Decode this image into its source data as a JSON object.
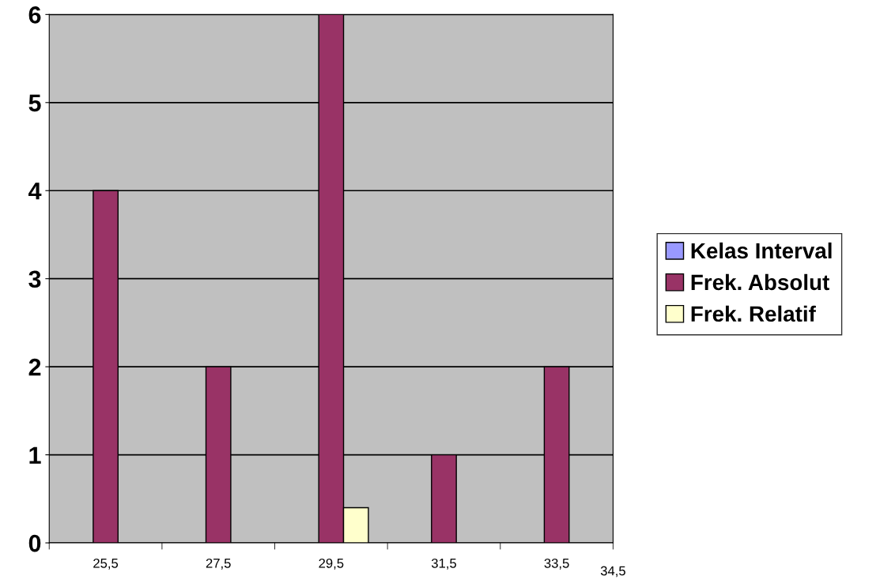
{
  "chart_data": {
    "type": "bar",
    "categories": [
      "25,5",
      "27,5",
      "29,5",
      "31,5",
      "33,5"
    ],
    "series": [
      {
        "name": "Kelas Interval",
        "color": "#9999ff",
        "values": [
          null,
          null,
          null,
          null,
          null
        ]
      },
      {
        "name": "Frek. Absolut",
        "color": "#993366",
        "values": [
          4,
          2,
          6,
          1,
          2
        ]
      },
      {
        "name": "Frek. Relatif",
        "color": "#ffffcc",
        "values": [
          null,
          null,
          0.4,
          null,
          null
        ]
      }
    ],
    "ylim": [
      0,
      6
    ],
    "yticks": [
      0,
      1,
      2,
      3,
      4,
      5,
      6
    ],
    "grid": "y",
    "legend": "right",
    "annotations": [
      "34,5"
    ]
  }
}
